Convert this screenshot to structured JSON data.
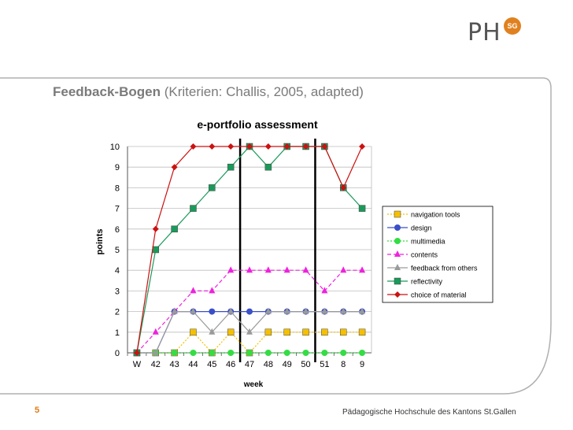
{
  "logo": {
    "main": "PH",
    "badge": "SG"
  },
  "heading": {
    "bold": "Feedback-Bogen",
    "normal": "(Kriterien: Challis, 2005, adapted)"
  },
  "footer": {
    "slide_number": "5",
    "institution": "Pädagogische Hochschule des Kantons St.Gallen"
  },
  "chart_data": {
    "type": "line",
    "title": "e-portfolio assessment",
    "xlabel": "week",
    "ylabel": "points",
    "categories": [
      "W",
      "42",
      "43",
      "44",
      "45",
      "46",
      "47",
      "48",
      "49",
      "50",
      "51",
      "8",
      "9"
    ],
    "ylim": [
      0,
      10
    ],
    "yticks": [
      0,
      1,
      2,
      3,
      4,
      5,
      6,
      7,
      8,
      9,
      10
    ],
    "grid": true,
    "legend": "right",
    "vertical_lines_after": [
      "46",
      "50"
    ],
    "series": [
      {
        "name": "navigation tools",
        "color": "#f5c000",
        "marker": "square",
        "dash": "dotted",
        "values": [
          0,
          0,
          0,
          1,
          0,
          1,
          0,
          1,
          1,
          1,
          1,
          1,
          1
        ]
      },
      {
        "name": "design",
        "color": "#3a4fc8",
        "marker": "circle",
        "dash": "solid",
        "values": [
          0,
          0,
          2,
          2,
          2,
          2,
          2,
          2,
          2,
          2,
          2,
          2,
          2
        ]
      },
      {
        "name": "multimedia",
        "color": "#33dd44",
        "marker": "circle",
        "dash": "dotted",
        "values": [
          0,
          0,
          0,
          0,
          0,
          0,
          0,
          0,
          0,
          0,
          0,
          0,
          0
        ]
      },
      {
        "name": "contents",
        "color": "#ee22dd",
        "marker": "triangle",
        "dash": "dashed",
        "values": [
          0,
          1,
          2,
          3,
          3,
          4,
          4,
          4,
          4,
          4,
          3,
          4,
          4
        ]
      },
      {
        "name": "feedback from others",
        "color": "#9a9a9a",
        "marker": "triangle",
        "dash": "solid",
        "values": [
          0,
          0,
          2,
          2,
          1,
          2,
          1,
          2,
          2,
          2,
          2,
          2,
          2
        ]
      },
      {
        "name": "reflectivity",
        "color": "#1a9a5a",
        "marker": "square",
        "dash": "solid",
        "values": [
          0,
          5,
          6,
          7,
          8,
          9,
          10,
          9,
          10,
          10,
          10,
          8,
          7
        ]
      },
      {
        "name": "choice of material",
        "color": "#cc1111",
        "marker": "diamond",
        "dash": "solid",
        "values": [
          0,
          6,
          9,
          10,
          10,
          10,
          10,
          10,
          10,
          10,
          10,
          8,
          10
        ]
      }
    ]
  }
}
